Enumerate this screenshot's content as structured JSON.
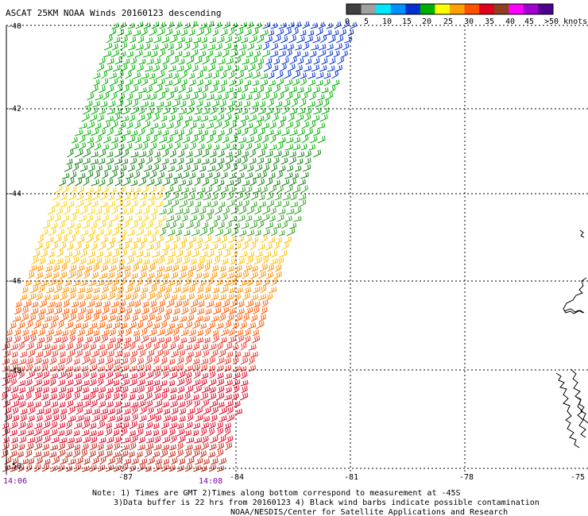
{
  "title": "ASCAT 25KM NOAA Winds 20160123 descending",
  "legend": {
    "colors": [
      "#404040",
      "#a0a0a0",
      "#00e8ff",
      "#0090ff",
      "#0030d0",
      "#00b000",
      "#ffff00",
      "#ffa000",
      "#ff5000",
      "#e00020",
      "#904020",
      "#ff00ff",
      "#a000d0",
      "#500090"
    ],
    "labels": [
      "0",
      "5",
      "10",
      "15",
      "20",
      "25",
      "30",
      "35",
      "40",
      "45",
      ">50 knots"
    ]
  },
  "axes": {
    "lat_labels": [
      "-40",
      "-42",
      "-44",
      "-46",
      "-48",
      "-50"
    ],
    "lon_labels": [
      "-87",
      "-84",
      "-81",
      "-78",
      "-75"
    ]
  },
  "times": [
    "14:06",
    "14:08"
  ],
  "notes": [
    "Note: 1) Times are GMT 2)Times along bottom correspond to measurement at -45S",
    "3)Data buffer is 22 hrs from 20160123 4) Black wind barbs indicate possible contamination",
    "NOAA/NESDIS/Center for Satellite Applications and Research"
  ]
}
